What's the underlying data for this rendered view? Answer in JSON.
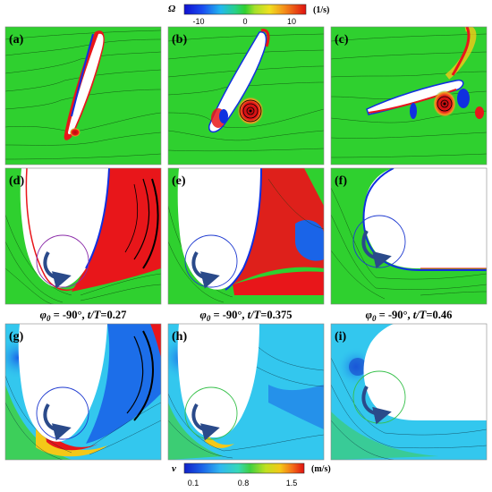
{
  "colorbar_top": {
    "symbol": "Ω",
    "unit": "(1/s)",
    "ticks": [
      "-10",
      "0",
      "10"
    ]
  },
  "colorbar_bottom": {
    "symbol": "v",
    "unit": "(m/s)",
    "ticks": [
      "0.1",
      "0.8",
      "1.5"
    ]
  },
  "panels": [
    {
      "label": "(a)"
    },
    {
      "label": "(b)"
    },
    {
      "label": "(c)"
    },
    {
      "label": "(d)"
    },
    {
      "label": "(e)"
    },
    {
      "label": "(f)"
    },
    {
      "label": "(g)"
    },
    {
      "label": "(h)"
    },
    {
      "label": "(i)"
    }
  ],
  "captions": [
    {
      "phi": "φ",
      "sub": "0",
      "angle": " = -90°, ",
      "t": "t/T",
      "val": "=0.27"
    },
    {
      "phi": "φ",
      "sub": "0",
      "angle": " = -90°, ",
      "t": "t/T",
      "val": "=0.375"
    },
    {
      "phi": "φ",
      "sub": "0",
      "angle": " = -90°, ",
      "t": "t/T",
      "val": "=0.46"
    }
  ],
  "colors": {
    "field_green": "#2fd02f",
    "vortex_red": "#e8161a",
    "vortex_blue": "#1030e0",
    "speed_low": "#1a72e6",
    "speed_mid": "#33c7ee",
    "speed_high": "#e8161a"
  }
}
